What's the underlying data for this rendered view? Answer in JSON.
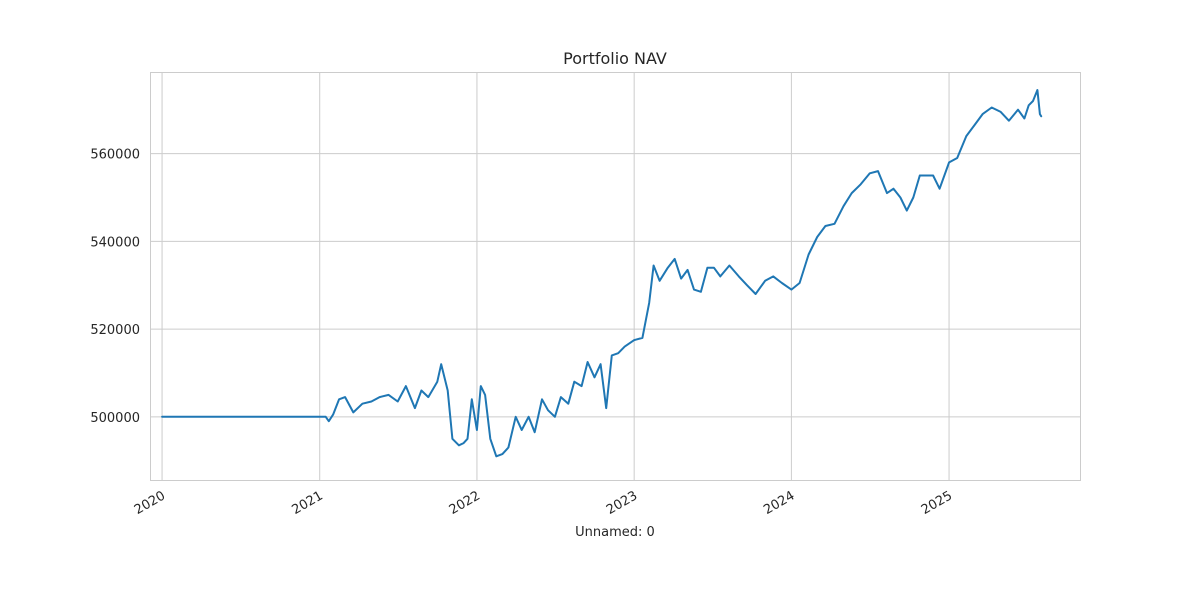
{
  "chart_data": {
    "type": "line",
    "title": "Portfolio NAV",
    "xlabel": "Unnamed: 0",
    "ylabel": "",
    "x_ticks": [
      "2020",
      "2021",
      "2022",
      "2023",
      "2024",
      "2025"
    ],
    "y_ticks": [
      "500000",
      "520000",
      "540000",
      "560000"
    ],
    "y_tick_values": [
      500000,
      520000,
      540000,
      560000
    ],
    "xlim": [
      "2019-12-04",
      "2025-11-01"
    ],
    "ylim": [
      485600,
      578600
    ],
    "grid": true,
    "legend": "none",
    "series": [
      {
        "color": "#1f77b4",
        "x": [
          "2020-01-01",
          "2021-01-15",
          "2021-01-22",
          "2021-02-01",
          "2021-02-15",
          "2021-03-01",
          "2021-03-20",
          "2021-04-10",
          "2021-05-01",
          "2021-05-20",
          "2021-06-10",
          "2021-07-01",
          "2021-07-20",
          "2021-08-10",
          "2021-08-25",
          "2021-09-10",
          "2021-10-01",
          "2021-10-10",
          "2021-10-25",
          "2021-11-05",
          "2021-11-20",
          "2021-12-01",
          "2021-12-10",
          "2021-12-20",
          "2022-01-01",
          "2022-01-10",
          "2022-01-20",
          "2022-02-01",
          "2022-02-15",
          "2022-03-01",
          "2022-03-15",
          "2022-04-01",
          "2022-04-15",
          "2022-05-01",
          "2022-05-15",
          "2022-06-01",
          "2022-06-15",
          "2022-07-01",
          "2022-07-15",
          "2022-08-01",
          "2022-08-15",
          "2022-09-01",
          "2022-09-15",
          "2022-10-01",
          "2022-10-15",
          "2022-10-28",
          "2022-11-10",
          "2022-11-25",
          "2022-12-10",
          "2023-01-01",
          "2023-01-20",
          "2023-02-05",
          "2023-02-15",
          "2023-03-01",
          "2023-03-20",
          "2023-04-05",
          "2023-04-20",
          "2023-05-05",
          "2023-05-20",
          "2023-06-05",
          "2023-06-20",
          "2023-07-05",
          "2023-07-20",
          "2023-08-10",
          "2023-09-01",
          "2023-09-20",
          "2023-10-10",
          "2023-11-01",
          "2023-11-20",
          "2023-12-10",
          "2024-01-01",
          "2024-01-20",
          "2024-02-10",
          "2024-03-01",
          "2024-03-20",
          "2024-04-10",
          "2024-05-01",
          "2024-05-20",
          "2024-06-10",
          "2024-07-01",
          "2024-07-20",
          "2024-08-10",
          "2024-08-25",
          "2024-09-10",
          "2024-09-25",
          "2024-10-10",
          "2024-10-25",
          "2024-11-10",
          "2024-11-25",
          "2024-12-10",
          "2025-01-01",
          "2025-01-20",
          "2025-02-10",
          "2025-03-01",
          "2025-03-20",
          "2025-04-10",
          "2025-05-01",
          "2025-05-20",
          "2025-06-10",
          "2025-06-25",
          "2025-07-05",
          "2025-07-15",
          "2025-07-25",
          "2025-07-31",
          "2025-08-03"
        ],
        "y": [
          500000,
          500000,
          499000,
          500500,
          504000,
          504500,
          501000,
          503000,
          503500,
          504500,
          505000,
          503500,
          507000,
          502000,
          506000,
          504500,
          508000,
          512000,
          506000,
          495000,
          493500,
          494000,
          495000,
          504000,
          497000,
          507000,
          505000,
          495000,
          491000,
          491500,
          493000,
          500000,
          497000,
          500000,
          496500,
          504000,
          501500,
          500000,
          504500,
          503000,
          508000,
          507000,
          512500,
          509000,
          512000,
          502000,
          514000,
          514500,
          516000,
          517500,
          518000,
          526000,
          534500,
          531000,
          534000,
          536000,
          531500,
          533500,
          529000,
          528500,
          534000,
          534000,
          532000,
          534500,
          532000,
          530000,
          528000,
          531000,
          532000,
          530500,
          529000,
          530500,
          537000,
          541000,
          543500,
          544000,
          548000,
          551000,
          553000,
          555500,
          556000,
          551000,
          552000,
          550000,
          547000,
          550000,
          555000,
          555000,
          555000,
          552000,
          558000,
          559000,
          564000,
          566500,
          569000,
          570500,
          569500,
          567500,
          570000,
          568000,
          571000,
          572000,
          574500,
          569000,
          568500
        ]
      }
    ]
  }
}
